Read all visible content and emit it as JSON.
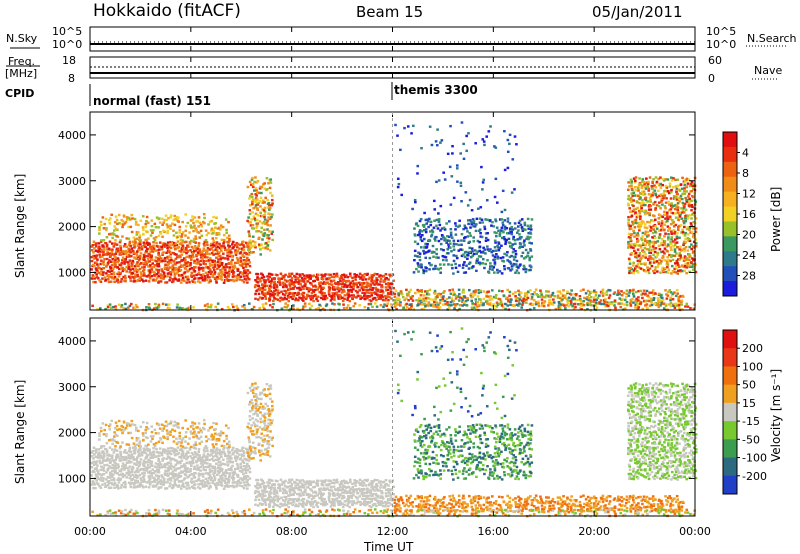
{
  "header": {
    "station": "Hokkaido (fitACF)",
    "beam": "Beam 15",
    "date": "05/Jan/2011"
  },
  "top_panels": {
    "nsky_label": "N.Sky",
    "nsearch_label": "N.Search",
    "n_ticks": [
      "10^5",
      "10^0"
    ],
    "freq_label_1": "Freq.",
    "freq_label_2": "[MHz]",
    "freq_ticks": [
      "18",
      "8"
    ],
    "nave_label": "Nave",
    "nave_ticks": [
      "60",
      "0"
    ],
    "cpid_label": "CPID",
    "cpid_segments": [
      {
        "label": "normal (fast) 151",
        "start_hour": 0
      },
      {
        "label": "themis 3300",
        "start_hour": 12
      }
    ]
  },
  "chart_data": [
    {
      "type": "heatmap",
      "name": "power",
      "ylabel": "Slant Range [km]",
      "yticks": [
        1000,
        2000,
        3000,
        4000
      ],
      "ylim": [
        180,
        4500
      ],
      "xlim": [
        0,
        24
      ],
      "xticks_hours": [
        0,
        4,
        8,
        12,
        16,
        20,
        24
      ],
      "colorbar": {
        "label": "Power [dB]",
        "ticks": [
          "4",
          "8",
          "12",
          "16",
          "20",
          "24",
          "28"
        ],
        "colors": [
          "#1c1cdc",
          "#2050b8",
          "#2e7a8a",
          "#3a9860",
          "#98c028",
          "#f2d024",
          "#f6b020",
          "#f08c18",
          "#ec6210",
          "#e83010",
          "#e01010"
        ]
      }
    },
    {
      "type": "heatmap",
      "name": "velocity",
      "ylabel": "Slant Range [km]",
      "yticks": [
        1000,
        2000,
        3000,
        4000
      ],
      "ylim": [
        180,
        4500
      ],
      "xlim": [
        0,
        24
      ],
      "xticks_hours": [
        0,
        4,
        8,
        12,
        16,
        20,
        24
      ],
      "colorbar": {
        "label": "Velocity [m s⁻¹]",
        "ticks": [
          "200",
          "100",
          "50",
          "15",
          "-15",
          "-50",
          "-100",
          "-200"
        ],
        "colors": [
          "#2040c8",
          "#2c6a80",
          "#3c9c50",
          "#78c830",
          "#c8c8c0",
          "#f0a020",
          "#f07010",
          "#e83818",
          "#e01010"
        ]
      }
    }
  ],
  "xaxis": {
    "tick_labels": [
      "00:00",
      "04:00",
      "08:00",
      "12:00",
      "16:00",
      "20:00",
      "00:00"
    ],
    "label": "Time UT"
  }
}
